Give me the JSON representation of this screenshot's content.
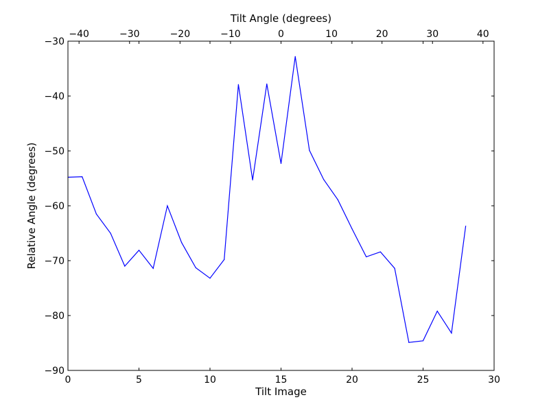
{
  "chart_data": {
    "type": "line",
    "title": "",
    "xlabel": "Tilt Image",
    "ylabel": "Relative Angle (degrees)",
    "x2label": "Tilt Angle (degrees)",
    "xlim": [
      0,
      30
    ],
    "ylim": [
      -90,
      -30
    ],
    "x2lim": [
      -42.2,
      42.2
    ],
    "xticks": [
      0,
      5,
      10,
      15,
      20,
      25,
      30
    ],
    "yticks": [
      -90,
      -80,
      -70,
      -60,
      -50,
      -40,
      -30
    ],
    "x2ticks": [
      -40,
      -30,
      -20,
      -10,
      0,
      10,
      20,
      30,
      40
    ],
    "xtick_labels": [
      "0",
      "5",
      "10",
      "15",
      "20",
      "25",
      "30"
    ],
    "ytick_labels": [
      "−90",
      "−80",
      "−70",
      "−60",
      "−50",
      "−40",
      "−30"
    ],
    "x2tick_labels": [
      "−40",
      "−30",
      "−20",
      "−10",
      "0",
      "10",
      "20",
      "30",
      "40"
    ],
    "grid": false,
    "series": [
      {
        "color": "#0000ff",
        "x": [
          0,
          1,
          2,
          3,
          4,
          5,
          6,
          7,
          8,
          9,
          10,
          11,
          12,
          13,
          14,
          15,
          16,
          17,
          18,
          19,
          20,
          21,
          22,
          23,
          24,
          25,
          26,
          27,
          28
        ],
        "y": [
          -54.8,
          -54.7,
          -61.5,
          -65.0,
          -71.0,
          -68.1,
          -71.4,
          -60.0,
          -66.7,
          -71.3,
          -73.2,
          -69.8,
          -37.9,
          -55.3,
          -37.8,
          -52.3,
          -32.8,
          -49.9,
          -55.2,
          -58.9,
          -64.2,
          -69.3,
          -68.4,
          -71.4,
          -84.9,
          -84.6,
          -79.2,
          -83.2,
          -63.7
        ]
      }
    ]
  }
}
